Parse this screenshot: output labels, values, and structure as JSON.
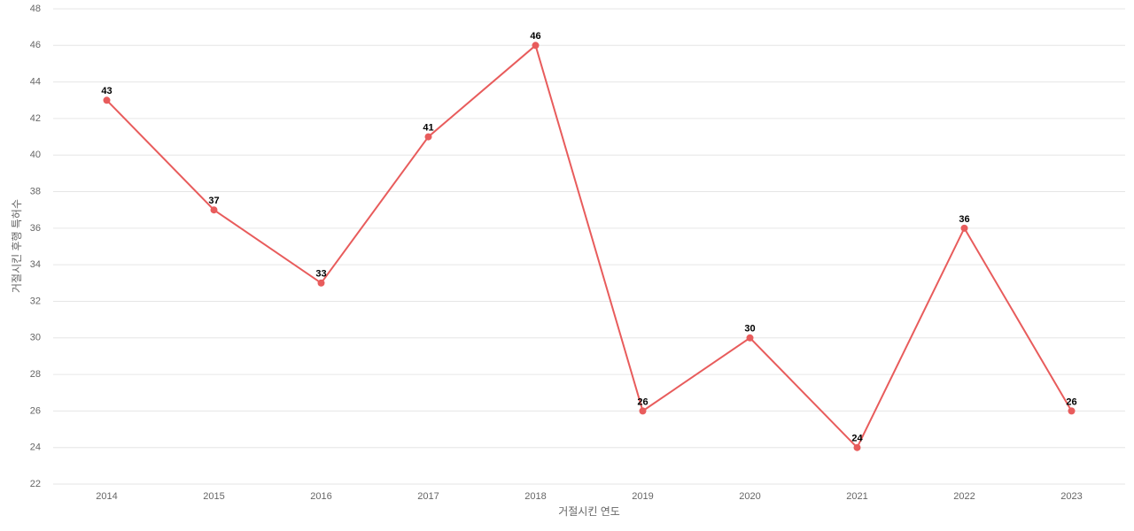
{
  "chart_data": {
    "type": "line",
    "x_label": "거절시킨 연도",
    "y_label": "거절시킨 후행 특허수",
    "categories": [
      "2014",
      "2015",
      "2016",
      "2017",
      "2018",
      "2019",
      "2020",
      "2021",
      "2022",
      "2023"
    ],
    "values": [
      43,
      37,
      33,
      41,
      46,
      26,
      30,
      24,
      36,
      26
    ],
    "color": "#e85c5c",
    "ylim": [
      22,
      48
    ],
    "yticks": [
      22,
      24,
      26,
      28,
      30,
      32,
      34,
      36,
      38,
      40,
      42,
      44,
      46,
      48
    ],
    "grid": true,
    "data_labels": true
  }
}
